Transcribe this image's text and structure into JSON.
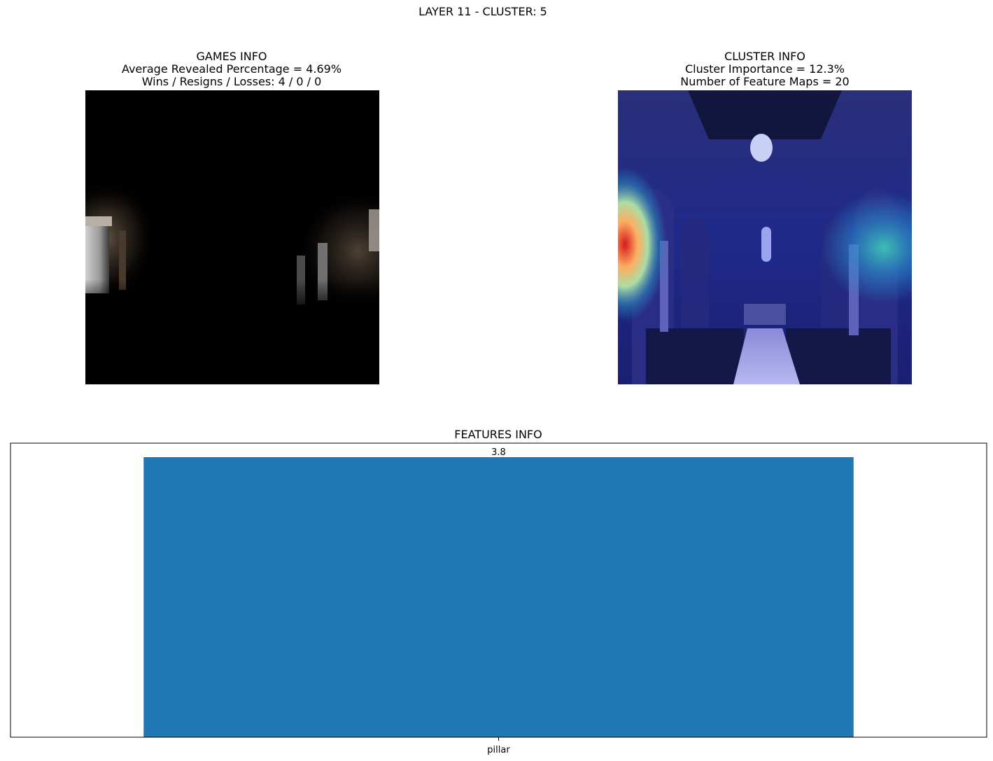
{
  "figure": {
    "suptitle": "LAYER 11 - CLUSTER: 5"
  },
  "games_info": {
    "title": "GAMES INFO",
    "line1": "Average Revealed Percentage = 4.69%",
    "line2": "Wins / Resigns / Losses: 4 / 0 / 0",
    "image_description": "mostly black masked image revealing pillars at left and right"
  },
  "cluster_info": {
    "title": "CLUSTER INFO",
    "line1": "Cluster Importance = 12.3%",
    "line2": "Number of Feature Maps = 20",
    "image_description": "church interior photo with jet colormap heatmap overlay, hot spot on left pillar"
  },
  "chart_data": {
    "type": "bar",
    "title": "FEATURES INFO",
    "categories": [
      "pillar"
    ],
    "values": [
      3.8
    ],
    "data_labels": [
      "3.8"
    ],
    "xlabel": "",
    "ylabel": "",
    "ylim": [
      0,
      3.99
    ],
    "bar_color": "#1f77b4",
    "grid": false,
    "y_ticks_visible": false
  }
}
